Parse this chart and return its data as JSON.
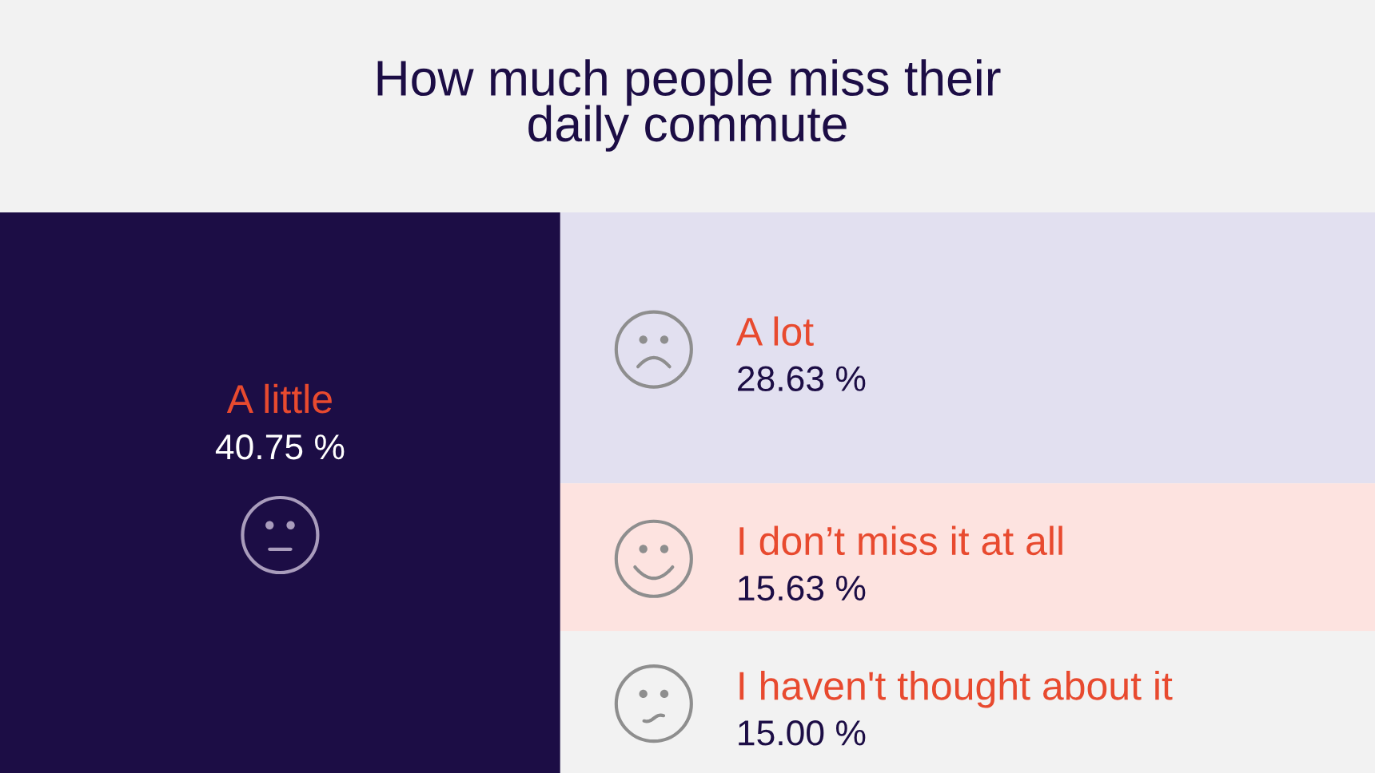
{
  "chart_data": {
    "type": "other",
    "title": "How much people miss their\ndaily commute",
    "categories": [
      "A little",
      "A lot",
      "I don’t miss it at all",
      "I haven't thought about it"
    ],
    "values": [
      40.75,
      28.63,
      15.63,
      15.0
    ],
    "value_labels": [
      "40.75 %",
      "28.63 %",
      "15.63 %",
      "15.00 %"
    ],
    "colors": [
      "#1c0d45",
      "#e2e0f0",
      "#fde3e0",
      "#f2f2f2"
    ]
  }
}
